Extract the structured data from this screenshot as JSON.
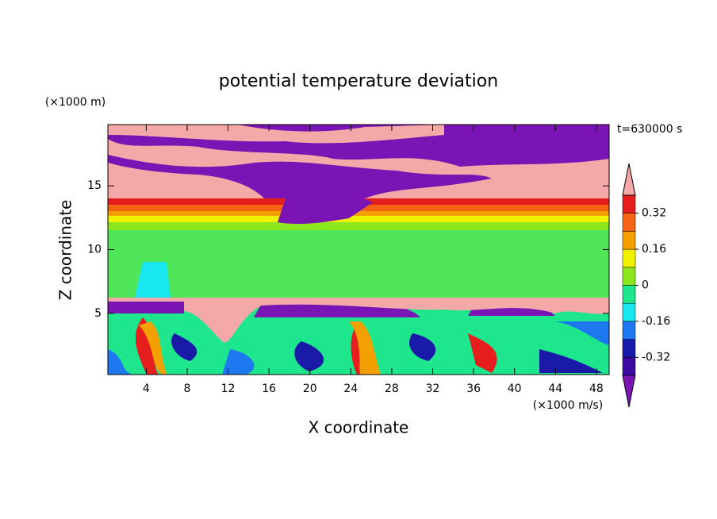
{
  "chart_data": {
    "type": "contour",
    "title": "potential temperature deviation",
    "x_label": "X coordinate",
    "y_label": "Z coordinate",
    "x_unit": "(×1000 m/s)",
    "y_unit": "(×1000 m)",
    "time_label": "t=630000 s",
    "xlim": [
      0.25,
      49.25
    ],
    "xticks": [
      4,
      8,
      12,
      16,
      20,
      24,
      28,
      32,
      36,
      40,
      44,
      48
    ],
    "ylim": [
      0.2,
      19.8
    ],
    "yticks": [
      5,
      10,
      15
    ],
    "levels": [
      -0.4,
      -0.32,
      -0.24,
      -0.16,
      -0.08,
      0,
      0.08,
      0.16,
      0.24,
      0.32,
      0.4
    ],
    "colors": [
      "#7a14b4",
      "#3c0aa0",
      "#1a1aa8",
      "#1e78f0",
      "#18e6f0",
      "#1ee68c",
      "#8ce61e",
      "#f0f000",
      "#f4a000",
      "#f46414",
      "#e61e1e",
      "#f4a8a8"
    ],
    "colorbar_ticks": [
      -0.32,
      -0.16,
      0,
      0.16,
      0.32
    ]
  }
}
